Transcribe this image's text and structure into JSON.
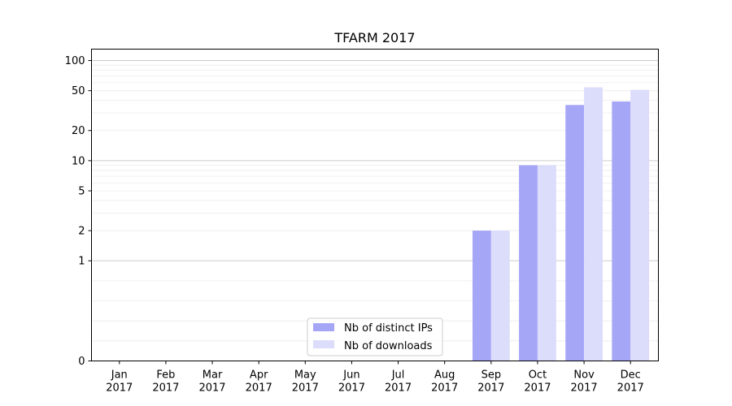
{
  "chart_data": {
    "type": "bar",
    "title": "TFARM 2017",
    "xlabel": "",
    "ylabel": "",
    "yscale": "symlog",
    "ylim": [
      0,
      130
    ],
    "yticks": [
      {
        "value": 0,
        "label": "0"
      },
      {
        "value": 1,
        "label": "1"
      },
      {
        "value": 2,
        "label": "2"
      },
      {
        "value": 5,
        "label": "5"
      },
      {
        "value": 10,
        "label": "10"
      },
      {
        "value": 20,
        "label": "20"
      },
      {
        "value": 50,
        "label": "50"
      },
      {
        "value": 100,
        "label": "100"
      }
    ],
    "grid": "major and minor horizontal",
    "legend_position": "bottom-center",
    "categories": [
      {
        "month": "Jan",
        "year": "2017"
      },
      {
        "month": "Feb",
        "year": "2017"
      },
      {
        "month": "Mar",
        "year": "2017"
      },
      {
        "month": "Apr",
        "year": "2017"
      },
      {
        "month": "May",
        "year": "2017"
      },
      {
        "month": "Jun",
        "year": "2017"
      },
      {
        "month": "Jul",
        "year": "2017"
      },
      {
        "month": "Aug",
        "year": "2017"
      },
      {
        "month": "Sep",
        "year": "2017"
      },
      {
        "month": "Oct",
        "year": "2017"
      },
      {
        "month": "Nov",
        "year": "2017"
      },
      {
        "month": "Dec",
        "year": "2017"
      }
    ],
    "series": [
      {
        "name": "Nb of distinct IPs",
        "color": "#a6a6f7",
        "values": [
          0,
          0,
          0,
          0,
          0,
          0,
          0,
          0,
          2,
          9,
          36,
          39
        ]
      },
      {
        "name": "Nb of downloads",
        "color": "#dcdcfb",
        "values": [
          0,
          0,
          0,
          0,
          0,
          0,
          0,
          0,
          2,
          9,
          54,
          51
        ]
      }
    ]
  }
}
